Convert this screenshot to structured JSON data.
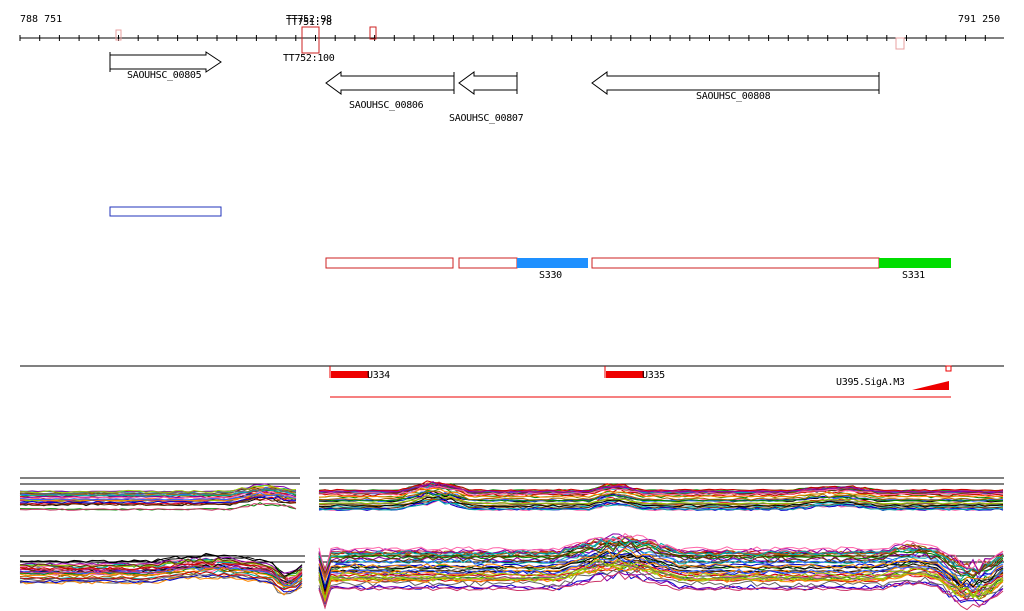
{
  "ruler": {
    "start_label": "788 751",
    "end_label": "791 250",
    "terminator_labels": [
      "TT752:98",
      "TT751:78",
      "TT752:100"
    ]
  },
  "genes": [
    {
      "name": "SAOUHSC_00805",
      "strand": "+"
    },
    {
      "name": "SAOUHSC_00806",
      "strand": "-"
    },
    {
      "name": "SAOUHSC_00807",
      "strand": "-"
    },
    {
      "name": "SAOUHSC_00808",
      "strand": "-"
    }
  ],
  "segments": [
    {
      "name": "S330",
      "color": "#1e90ff"
    },
    {
      "name": "S331",
      "color": "#00dd00"
    }
  ],
  "upshifts": [
    "U334",
    "U335"
  ],
  "promoter": {
    "name": "U395.SigA.M3",
    "color": "#ee0000"
  },
  "colors": {
    "outline_red": "#cc2222",
    "outline_blue": "#2233bb",
    "axis": "#000000"
  }
}
